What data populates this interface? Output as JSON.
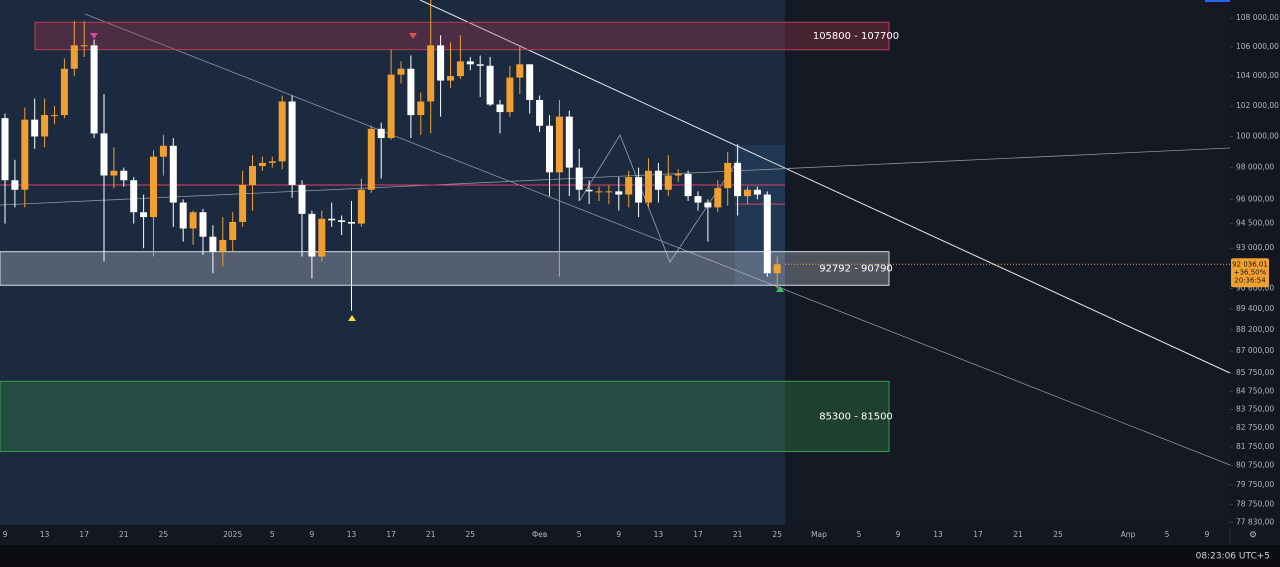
{
  "chart_data": {
    "type": "candlestick",
    "categories": [
      "9",
      null,
      null,
      null,
      "13",
      null,
      null,
      null,
      "17",
      null,
      null,
      null,
      "21",
      null,
      null,
      null,
      "25",
      null,
      null,
      null,
      null,
      null,
      null,
      "2025",
      null,
      null,
      null,
      "5",
      null,
      null,
      null,
      "9",
      null,
      null,
      null,
      "13",
      null,
      null,
      null,
      "17",
      null,
      null,
      null,
      "21",
      null,
      null,
      null,
      "25",
      null,
      null,
      null,
      null,
      null,
      null,
      "Фев",
      null,
      null,
      null,
      "5",
      null,
      null,
      null,
      "9",
      null,
      null,
      null,
      "13",
      null,
      null,
      null,
      "17",
      null,
      null,
      null,
      "21",
      null,
      null,
      null,
      "25"
    ],
    "open": [
      101200,
      97200,
      96600,
      101100,
      100000,
      101400,
      101400,
      104500,
      106100,
      106100,
      100200,
      97500,
      97800,
      97200,
      95200,
      94900,
      98700,
      99400,
      95800,
      94200,
      95200,
      93700,
      92800,
      93500,
      94600,
      96900,
      98100,
      98300,
      98400,
      102300,
      96900,
      95100,
      92500,
      94800,
      94700,
      94600,
      94500,
      96600,
      100500,
      99900,
      104100,
      104500,
      101400,
      102300,
      106100,
      103700,
      104000,
      105000,
      104800,
      104700,
      102100,
      101600,
      103900,
      104800,
      102400,
      100700,
      97700,
      101300,
      98000,
      96600,
      96500,
      96500,
      96500,
      96300,
      97400,
      95800,
      97800,
      96600,
      97500,
      97600,
      96200,
      95800,
      95500,
      96700,
      98300,
      96200,
      96600,
      96300,
      91500
    ],
    "high": [
      101500,
      98500,
      101900,
      102500,
      102500,
      102000,
      105200,
      107800,
      107800,
      106500,
      102800,
      99300,
      98000,
      97400,
      96300,
      99100,
      100100,
      99900,
      96000,
      95300,
      95400,
      94400,
      94900,
      95200,
      97800,
      98800,
      98700,
      98700,
      102700,
      102700,
      97200,
      95300,
      95300,
      95800,
      95000,
      95900,
      97300,
      100700,
      100900,
      105800,
      105000,
      105400,
      102900,
      109300,
      106800,
      106300,
      106800,
      105300,
      105400,
      105300,
      102400,
      104700,
      106000,
      104800,
      102700,
      101400,
      102400,
      101700,
      99200,
      97200,
      96800,
      96900,
      97400,
      97800,
      98000,
      98600,
      98300,
      98800,
      97900,
      97800,
      96500,
      96000,
      97200,
      99000,
      99500,
      96800,
      96800,
      96500,
      92500
    ],
    "low": [
      94500,
      95500,
      95500,
      99200,
      99300,
      100800,
      101200,
      104000,
      105300,
      99900,
      92200,
      96700,
      96800,
      94500,
      93000,
      92500,
      97500,
      94300,
      93400,
      93200,
      92600,
      91500,
      91900,
      92800,
      94300,
      95300,
      97800,
      98000,
      97900,
      96100,
      92500,
      91200,
      92200,
      94300,
      93800,
      89300,
      94300,
      96400,
      97300,
      99800,
      103500,
      99900,
      100100,
      100200,
      101300,
      103200,
      103800,
      104400,
      102600,
      102000,
      100200,
      101300,
      102800,
      101500,
      100300,
      96200,
      91300,
      96200,
      95900,
      95700,
      95900,
      95700,
      95300,
      95500,
      94900,
      95500,
      95800,
      96200,
      97100,
      95900,
      95300,
      93400,
      95200,
      95600,
      95000,
      95700,
      96000,
      91300,
      90600
    ],
    "close": [
      97200,
      96600,
      101100,
      100000,
      101400,
      101400,
      104500,
      106100,
      106100,
      100200,
      97500,
      97800,
      97200,
      95200,
      94900,
      98700,
      99400,
      95800,
      94200,
      95200,
      93700,
      92800,
      93500,
      94600,
      96900,
      98100,
      98300,
      98400,
      102300,
      96900,
      95100,
      92500,
      94800,
      94700,
      94600,
      94500,
      96600,
      100500,
      99900,
      104100,
      104500,
      101400,
      102300,
      106100,
      103700,
      104000,
      105000,
      104800,
      104700,
      102100,
      101600,
      103900,
      104800,
      102400,
      100700,
      97700,
      101300,
      98000,
      96600,
      96500,
      96500,
      96500,
      96300,
      97400,
      95800,
      97800,
      96600,
      97500,
      97600,
      96200,
      95800,
      95500,
      96700,
      98300,
      96200,
      96600,
      96300,
      91500,
      92036
    ],
    "up_color": "#f0a030",
    "down_color": "#ffffff",
    "future_labels": [
      "Мар",
      "5",
      "9",
      "13",
      "17",
      "21",
      "25",
      "Апр",
      "5",
      "9"
    ],
    "log_scale": true,
    "ylim": [
      77700,
      109270
    ],
    "yticks": [
      {
        "value": 108000,
        "label": "108 000,00"
      },
      {
        "value": 106000,
        "label": "106 000,00"
      },
      {
        "value": 104000,
        "label": "104 000,00"
      },
      {
        "value": 102000,
        "label": "102 000,00"
      },
      {
        "value": 100000,
        "label": "100 000,00"
      },
      {
        "value": 98000,
        "label": "98 000,00"
      },
      {
        "value": 96000,
        "label": "96 000,00"
      },
      {
        "value": 94500,
        "label": "94 500,00"
      },
      {
        "value": 93000,
        "label": "93 000,00"
      },
      {
        "value": 90600,
        "label": "90 600,00"
      },
      {
        "value": 89400,
        "label": "89 400,00"
      },
      {
        "value": 88200,
        "label": "88 200,00"
      },
      {
        "value": 87000,
        "label": "87 000,00"
      },
      {
        "value": 85750,
        "label": "85 750,00"
      },
      {
        "value": 84750,
        "label": "84 750,00"
      },
      {
        "value": 83750,
        "label": "83 750,00"
      },
      {
        "value": 82750,
        "label": "82 750,00"
      },
      {
        "value": 81750,
        "label": "81 750,00"
      },
      {
        "value": 80750,
        "label": "80 750,00"
      },
      {
        "value": 79750,
        "label": "79 750,00"
      },
      {
        "value": 78750,
        "label": "78 750,00"
      },
      {
        "value": 77830,
        "label": "77 830,00"
      }
    ],
    "zones": [
      {
        "label": "105800 - 107700",
        "low": 105800,
        "high": 107700,
        "color": "#c0394f"
      },
      {
        "label": "92792 - 90790",
        "low": 90790,
        "high": 92792,
        "color": "#d8dce4"
      },
      {
        "label": "85300 - 81500",
        "low": 81500,
        "high": 85300,
        "color": "#3a9a4a"
      }
    ],
    "levels": [
      96900,
      95700
    ],
    "price_tag": {
      "price": 92036.01,
      "price_label": "92 036,01",
      "change": "+36,50%",
      "countdown": "20:36:54"
    },
    "clock": "08:23:06 UTC+5"
  }
}
